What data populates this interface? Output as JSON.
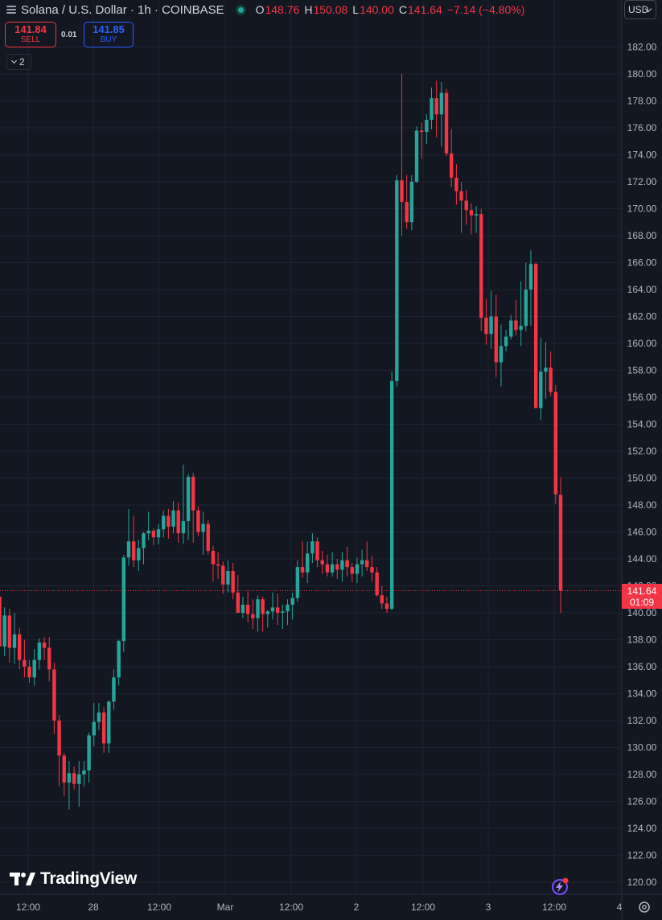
{
  "header": {
    "title": "Solana / U.S. Dollar · 1h · COINBASE",
    "open_key": "O",
    "open": "148.76",
    "high_key": "H",
    "high": "150.08",
    "low_key": "L",
    "low": "140.00",
    "close_key": "C",
    "close": "141.64",
    "change": "−7.14 (−4.80%)"
  },
  "currency": "USD",
  "trade": {
    "sell_price": "141.84",
    "sell_label": "SELL",
    "spread": "0.01",
    "buy_price": "141.85",
    "buy_label": "BUY"
  },
  "indicators_count": "2",
  "last_price": {
    "price": "141.64",
    "countdown": "01:09"
  },
  "brand": "TradingView",
  "colors": {
    "up": "#26a69a",
    "down": "#f23645",
    "background": "#131722",
    "grid": "#1f2330",
    "accent": "#2962ff"
  },
  "icons": {
    "menu": "hamburger-icon",
    "market_status": "market-open-dot-icon",
    "settings": "gear-icon",
    "assistant": "lightning-sparkle-icon"
  },
  "chart_data": {
    "type": "candlestick",
    "symbol": "SOLUSD",
    "interval": "1h",
    "ylim": [
      119,
      183
    ],
    "y_ticks": [
      120,
      122,
      124,
      126,
      128,
      130,
      132,
      134,
      136,
      138,
      140,
      142,
      144,
      146,
      148,
      150,
      152,
      154,
      156,
      158,
      160,
      162,
      164,
      166,
      168,
      170,
      172,
      174,
      176,
      178,
      180,
      182
    ],
    "x_ticks": [
      "12:00",
      "28",
      "12:00",
      "Mar",
      "12:00",
      "2",
      "12:00",
      "3",
      "12:00",
      "4"
    ],
    "grid": true,
    "last_price_line": 141.64,
    "candles": [
      [
        141.2,
        141.7,
        136.4,
        137.5
      ],
      [
        137.5,
        140.4,
        136.8,
        139.8
      ],
      [
        139.8,
        140.3,
        136.3,
        137.4
      ],
      [
        137.4,
        140.0,
        136.2,
        138.4
      ],
      [
        138.4,
        138.9,
        135.8,
        136.5
      ],
      [
        136.5,
        138.0,
        135.2,
        136.0
      ],
      [
        136.0,
        136.5,
        134.8,
        135.2
      ],
      [
        135.2,
        137.3,
        134.6,
        136.5
      ],
      [
        136.5,
        138.1,
        135.8,
        137.8
      ],
      [
        137.8,
        138.2,
        136.5,
        137.4
      ],
      [
        137.4,
        138.2,
        134.9,
        135.8
      ],
      [
        135.8,
        136.3,
        131.0,
        132.0
      ],
      [
        132.0,
        132.4,
        127.1,
        129.4
      ],
      [
        129.4,
        129.6,
        126.4,
        127.4
      ],
      [
        127.4,
        129.0,
        125.4,
        128.1
      ],
      [
        128.1,
        128.6,
        126.9,
        127.3
      ],
      [
        127.3,
        129.0,
        125.6,
        128.0
      ],
      [
        128.0,
        129.0,
        127.1,
        128.3
      ],
      [
        128.3,
        131.1,
        127.4,
        130.9
      ],
      [
        130.9,
        133.3,
        130.1,
        131.9
      ],
      [
        131.9,
        133.3,
        131.3,
        132.6
      ],
      [
        132.6,
        133.0,
        129.6,
        130.3
      ],
      [
        130.3,
        133.5,
        129.6,
        133.4
      ],
      [
        133.4,
        135.8,
        132.8,
        135.2
      ],
      [
        135.2,
        138.0,
        134.6,
        137.9
      ],
      [
        137.9,
        144.3,
        137.1,
        144.1
      ],
      [
        144.1,
        147.7,
        143.5,
        145.3
      ],
      [
        145.3,
        147.2,
        143.4,
        143.9
      ],
      [
        143.9,
        145.4,
        143.1,
        144.8
      ],
      [
        144.8,
        146.0,
        143.6,
        145.9
      ],
      [
        145.9,
        147.5,
        145.4,
        146.1
      ],
      [
        146.1,
        146.3,
        145.0,
        145.6
      ],
      [
        145.6,
        146.6,
        145.1,
        146.2
      ],
      [
        146.2,
        147.6,
        145.6,
        147.2
      ],
      [
        147.2,
        147.7,
        145.5,
        146.4
      ],
      [
        146.4,
        148.3,
        145.9,
        147.6
      ],
      [
        147.6,
        148.2,
        145.2,
        145.9
      ],
      [
        145.9,
        151.0,
        145.1,
        146.8
      ],
      [
        146.8,
        150.3,
        145.4,
        150.1
      ],
      [
        150.1,
        150.4,
        145.2,
        147.6
      ],
      [
        147.6,
        147.9,
        145.7,
        146.0
      ],
      [
        146.0,
        147.5,
        144.3,
        146.6
      ],
      [
        146.6,
        146.9,
        144.3,
        144.6
      ],
      [
        144.6,
        145.0,
        142.3,
        143.6
      ],
      [
        143.6,
        144.5,
        142.5,
        143.5
      ],
      [
        143.5,
        143.8,
        141.4,
        142.1
      ],
      [
        142.1,
        143.9,
        141.5,
        143.1
      ],
      [
        143.1,
        143.7,
        141.0,
        141.5
      ],
      [
        141.5,
        142.8,
        140.1,
        140.0
      ],
      [
        140.0,
        141.2,
        139.6,
        140.6
      ],
      [
        140.6,
        141.6,
        139.3,
        139.9
      ],
      [
        139.9,
        141.0,
        138.8,
        139.6
      ],
      [
        139.6,
        141.3,
        138.6,
        141.0
      ],
      [
        141.0,
        141.2,
        138.6,
        139.9
      ],
      [
        139.9,
        140.2,
        138.9,
        140.1
      ],
      [
        140.1,
        141.5,
        139.5,
        140.4
      ],
      [
        140.4,
        141.4,
        139.1,
        140.0
      ],
      [
        140.0,
        140.6,
        138.8,
        140.1
      ],
      [
        140.1,
        141.0,
        139.1,
        140.6
      ],
      [
        140.6,
        141.5,
        139.5,
        141.1
      ],
      [
        141.1,
        143.9,
        140.8,
        143.4
      ],
      [
        143.4,
        145.3,
        142.6,
        143.0
      ],
      [
        143.0,
        145.3,
        142.2,
        144.4
      ],
      [
        144.4,
        145.9,
        143.7,
        145.3
      ],
      [
        145.3,
        145.6,
        143.4,
        143.9
      ],
      [
        143.9,
        144.6,
        142.9,
        143.6
      ],
      [
        143.6,
        144.3,
        142.7,
        143.0
      ],
      [
        143.0,
        144.5,
        142.7,
        143.6
      ],
      [
        143.6,
        144.0,
        142.5,
        143.2
      ],
      [
        143.2,
        144.5,
        142.3,
        143.9
      ],
      [
        143.9,
        144.9,
        142.7,
        143.4
      ],
      [
        143.4,
        143.7,
        142.3,
        142.9
      ],
      [
        142.9,
        144.1,
        142.2,
        143.6
      ],
      [
        143.6,
        144.7,
        142.7,
        143.9
      ],
      [
        143.9,
        145.3,
        143.1,
        143.4
      ],
      [
        143.4,
        144.2,
        142.3,
        143.0
      ],
      [
        143.0,
        143.4,
        141.2,
        141.3
      ],
      [
        141.3,
        142.0,
        140.3,
        140.7
      ],
      [
        140.7,
        141.2,
        140.0,
        140.3
      ],
      [
        140.3,
        157.9,
        140.2,
        157.2
      ],
      [
        157.2,
        172.5,
        156.8,
        172.1
      ],
      [
        172.1,
        180.0,
        168.0,
        170.5
      ],
      [
        170.5,
        172.5,
        168.5,
        169.0
      ],
      [
        169.0,
        172.5,
        168.4,
        172.0
      ],
      [
        172.0,
        176.1,
        171.9,
        175.8
      ],
      [
        175.8,
        176.4,
        173.7,
        175.7
      ],
      [
        175.7,
        177.0,
        174.8,
        176.6
      ],
      [
        176.6,
        179.0,
        175.9,
        178.2
      ],
      [
        178.2,
        179.5,
        175.3,
        177.0
      ],
      [
        177.0,
        179.4,
        174.6,
        178.6
      ],
      [
        178.6,
        178.9,
        173.9,
        174.1
      ],
      [
        174.1,
        175.9,
        171.6,
        172.3
      ],
      [
        172.3,
        173.3,
        170.3,
        171.3
      ],
      [
        171.3,
        172.0,
        168.2,
        170.6
      ],
      [
        170.6,
        171.4,
        168.8,
        169.9
      ],
      [
        169.9,
        170.4,
        168.1,
        169.5
      ],
      [
        169.5,
        170.2,
        168.2,
        169.6
      ],
      [
        169.6,
        170.0,
        160.9,
        161.9
      ],
      [
        161.9,
        163.3,
        159.9,
        160.7
      ],
      [
        160.7,
        163.9,
        159.6,
        162.0
      ],
      [
        162.0,
        163.6,
        157.5,
        158.6
      ],
      [
        158.6,
        161.4,
        156.8,
        159.8
      ],
      [
        159.8,
        161.0,
        159.4,
        160.5
      ],
      [
        160.5,
        162.1,
        160.3,
        161.7
      ],
      [
        161.7,
        163.2,
        160.6,
        161.0
      ],
      [
        161.0,
        164.6,
        159.8,
        161.3
      ],
      [
        161.3,
        166.0,
        160.9,
        164.0
      ],
      [
        164.0,
        166.9,
        161.3,
        165.9
      ],
      [
        165.9,
        166.0,
        155.6,
        155.2
      ],
      [
        155.2,
        160.4,
        154.3,
        157.9
      ],
      [
        157.9,
        160.1,
        155.9,
        158.2
      ],
      [
        158.2,
        159.4,
        156.1,
        156.4
      ],
      [
        156.4,
        156.9,
        148.1,
        148.8
      ],
      [
        148.76,
        150.08,
        140.0,
        141.64
      ]
    ]
  }
}
